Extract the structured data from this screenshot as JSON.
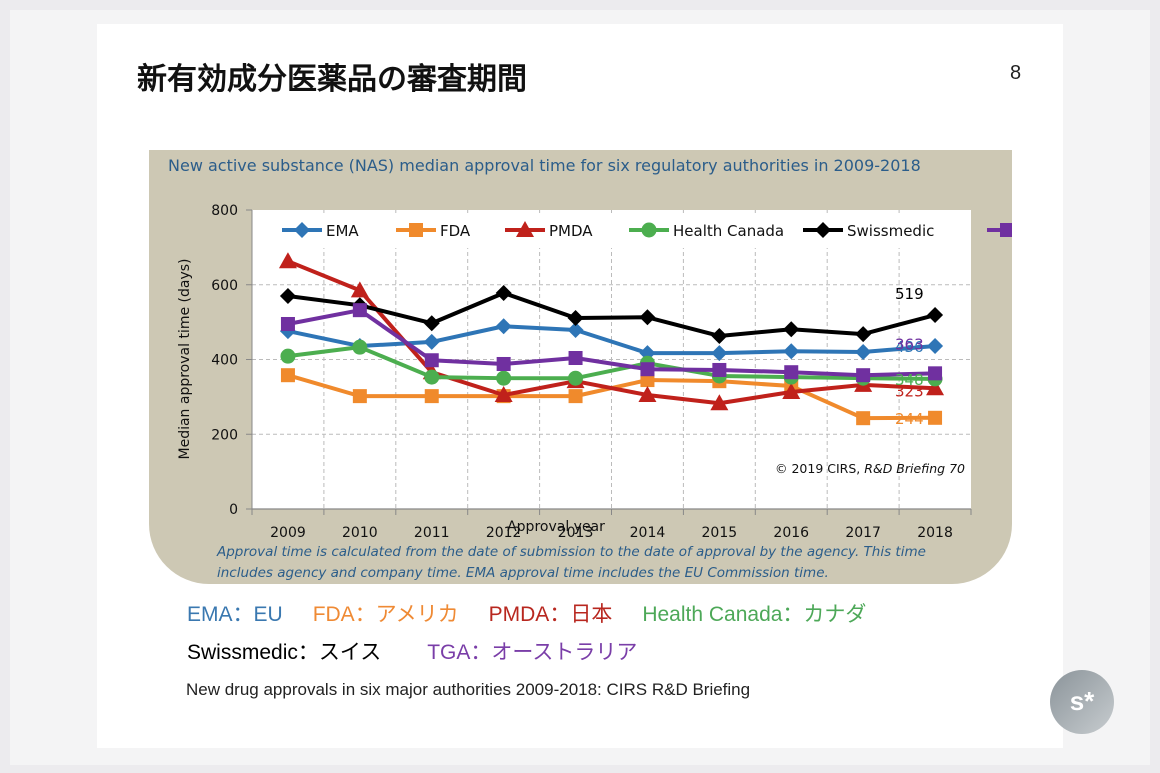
{
  "slide": {
    "title": "新有効成分医薬品の審査期間",
    "page_number": "8"
  },
  "chart_data": {
    "type": "line",
    "title": "New active substance (NAS) median approval time for six regulatory authorities in 2009-2018",
    "xlabel": "Approval year",
    "ylabel": "Median approval time (days)",
    "x": [
      "2009",
      "2010",
      "2011",
      "2012",
      "2013",
      "2014",
      "2015",
      "2016",
      "2017",
      "2018"
    ],
    "ylim": [
      0,
      800
    ],
    "yticks": [
      "0",
      "200",
      "400",
      "600",
      "800"
    ],
    "grid": true,
    "legend_position": "top",
    "series": [
      {
        "name": "EMA",
        "color": "#2e75b6",
        "marker": "diamond",
        "values": [
          476,
          436,
          447,
          489,
          479,
          417,
          417,
          422,
          420,
          436
        ],
        "end_label": "436"
      },
      {
        "name": "FDA",
        "color": "#f08a2c",
        "marker": "square",
        "values": [
          358,
          302,
          302,
          302,
          302,
          345,
          342,
          329,
          243,
          244
        ],
        "end_label": "244"
      },
      {
        "name": "PMDA",
        "color": "#c0211b",
        "marker": "triangle",
        "values": [
          663,
          585,
          366,
          305,
          342,
          305,
          283,
          313,
          332,
          323
        ],
        "end_label": "323"
      },
      {
        "name": "Health Canada",
        "color": "#4cae4f",
        "marker": "circle",
        "values": [
          409,
          433,
          353,
          350,
          350,
          390,
          356,
          353,
          350,
          348
        ],
        "end_label": "348"
      },
      {
        "name": "Swissmedic",
        "color": "#000000",
        "marker": "diamond",
        "values": [
          570,
          545,
          497,
          578,
          511,
          513,
          463,
          481,
          468,
          519
        ],
        "end_label": "519"
      },
      {
        "name": "TGA",
        "color": "#7030a0",
        "marker": "square",
        "values": [
          495,
          532,
          398,
          388,
          404,
          374,
          372,
          366,
          358,
          363
        ],
        "end_label": "363"
      }
    ],
    "annotations": {
      "copyright": "© 2019 CIRS,",
      "copyright_italic": "R&D Briefing 70",
      "footnote_line1": "Approval time is calculated from the date of submission to the date of approval by the agency. This time",
      "footnote_line2": "includes agency and company time. EMA approval time includes the EU Commission time."
    }
  },
  "key": {
    "row1": [
      {
        "text": "EMA：EU",
        "color": "#3a78b0"
      },
      {
        "text": "FDA：アメリカ",
        "color": "#ef8a34"
      },
      {
        "text": "PMDA：日本",
        "color": "#b8271f"
      },
      {
        "text": "Health Canada：カナダ",
        "color": "#4da858"
      }
    ],
    "row2": [
      {
        "text": "Swissmedic：スイス",
        "color": "#000000"
      },
      {
        "text": "TGA：オーストラリア",
        "color": "#7a3ea8"
      }
    ]
  },
  "source": "New drug approvals in six major authorities 2009-2018: CIRS R&D Briefing",
  "badge": {
    "label": "s*"
  }
}
